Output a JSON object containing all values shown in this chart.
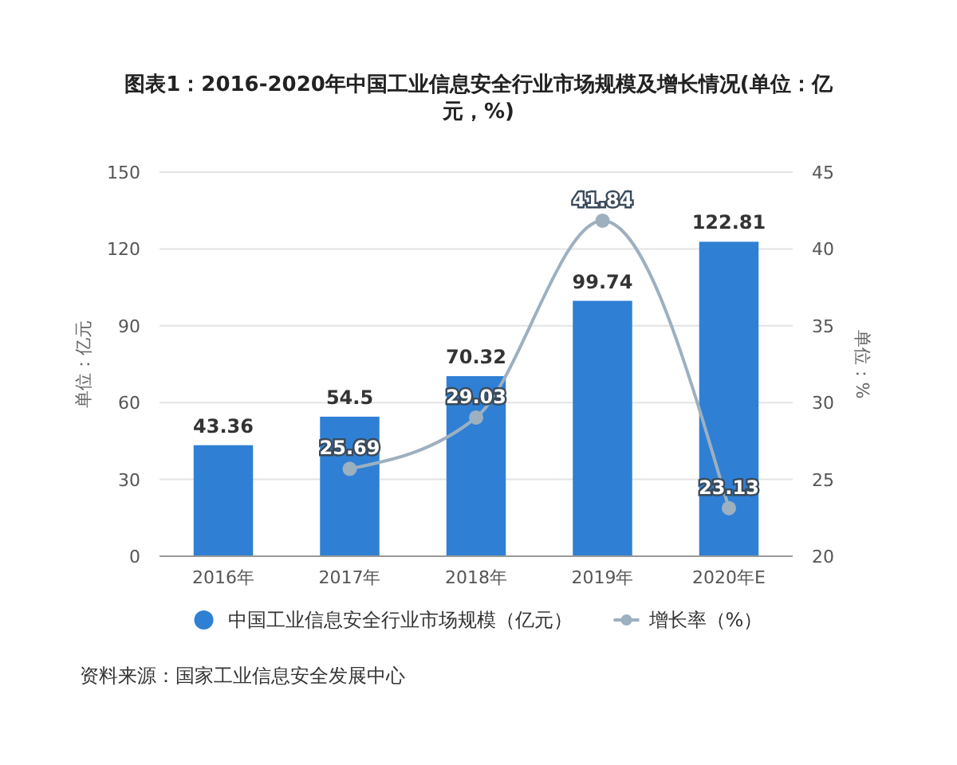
{
  "chart_data": {
    "type": "bar",
    "title": "图表1：2016-2020年中国工业信息安全行业市场规模及增长情况(单位：亿元，%)",
    "ylabel": "单位：亿元",
    "y2label": "单位：%",
    "categories": [
      "2016年",
      "2017年",
      "2018年",
      "2019年",
      "2020年E"
    ],
    "series": [
      {
        "name": "中国工业信息安全行业市场规模（亿元）",
        "color": "#2f80d4",
        "values": [
          43.36,
          54.5,
          70.32,
          99.74,
          122.81
        ]
      },
      {
        "name": "增长率（%）",
        "type": "line",
        "axis": "y2",
        "color": "#9db0c0",
        "values": [
          null,
          25.69,
          29.03,
          41.84,
          23.13
        ]
      }
    ],
    "ylim": [
      0,
      150
    ],
    "yticks": [
      0,
      30,
      60,
      90,
      120,
      150
    ],
    "y2lim": [
      20,
      45
    ],
    "y2ticks": [
      20,
      25,
      30,
      35,
      40,
      45
    ],
    "grid": "y",
    "legend": "bottom",
    "marker": "circle",
    "data_labels": true,
    "annotations": [
      "资料来源：国家工业信息安全发展中心"
    ]
  }
}
